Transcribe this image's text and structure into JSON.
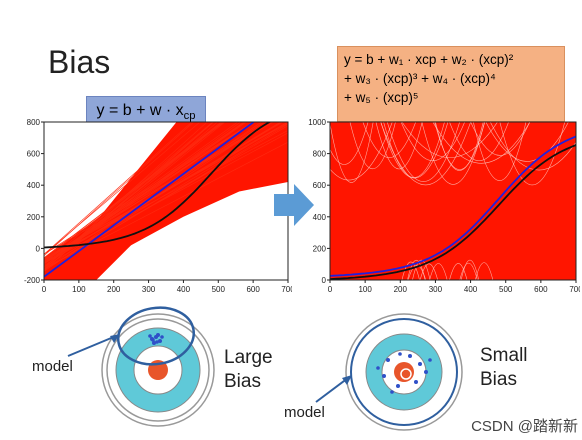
{
  "slide": {
    "title": "Bias",
    "eq1": "y = b + w · x",
    "eq1_sub": "cp",
    "eq2_line1": "y = b + w₁ · xcp + w₂ · (xcp)²",
    "eq2_line2": "+ w₃ · (xcp)³ + w₄ · (xcp)⁴",
    "eq2_line3": "+ w₅ · (xcp)⁵",
    "left_label_line1": "Large",
    "left_label_line2": "Bias",
    "right_label_line1": "Small",
    "right_label_line2": "Bias",
    "model_left": "model",
    "model_right": "model",
    "watermark": "CSDN @踏新新"
  },
  "chart_data": [
    {
      "type": "line",
      "title": "",
      "xlim": [
        0,
        700
      ],
      "ylim": [
        -200,
        800
      ],
      "xticks": [
        0,
        100,
        200,
        300,
        400,
        500,
        600,
        700
      ],
      "yticks": [
        -200,
        0,
        200,
        400,
        600,
        800
      ],
      "series": [
        {
          "color": "#e41a1c",
          "kind": "many linear fits"
        },
        {
          "color": "#1f1fcc",
          "kind": "average fit",
          "points": [
            [
              0,
              -180
            ],
            [
              700,
              960
            ]
          ]
        },
        {
          "color": "#111111",
          "kind": "true function"
        }
      ]
    },
    {
      "type": "line",
      "title": "",
      "xlim": [
        0,
        700
      ],
      "ylim": [
        0,
        1000
      ],
      "xticks": [
        0,
        100,
        200,
        300,
        400,
        500,
        600,
        700
      ],
      "yticks": [
        0,
        200,
        400,
        600,
        800,
        1000
      ],
      "series": [
        {
          "color": "#e41a1c",
          "kind": "many 5th-order fits"
        },
        {
          "color": "#1f1fcc",
          "kind": "average fit"
        },
        {
          "color": "#111111",
          "kind": "true function"
        }
      ]
    }
  ],
  "colors": {
    "red": "#ff1500",
    "blue": "#2020dd",
    "black": "#111111",
    "eq1_bg": "#8fa6d8",
    "eq2_bg": "#f5b183",
    "target_outer": "#ffffff",
    "target_teal": "#5fc9d8",
    "target_center": "#e8552a",
    "arrow": "#5b9bd5"
  }
}
